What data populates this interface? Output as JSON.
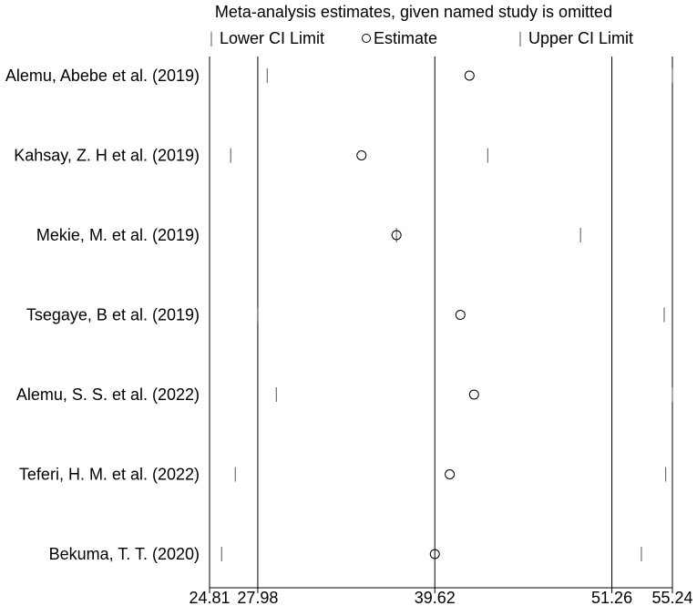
{
  "chart_data": {
    "type": "scatter",
    "title": "Meta-analysis estimates, given named study is omitted",
    "legend": {
      "placement": "top",
      "items": [
        {
          "symbol": "line",
          "label": "Lower CI Limit"
        },
        {
          "symbol": "circle",
          "label": "Estimate"
        },
        {
          "symbol": "line",
          "label": "Upper CI Limit"
        }
      ]
    },
    "xlim": [
      24.81,
      55.24
    ],
    "x_ticks": [
      24.81,
      27.98,
      39.62,
      51.26,
      55.24
    ],
    "x_tick_labels": [
      "24.81",
      "27.98",
      "39.62",
      "51.26",
      "55.24"
    ],
    "reference_lines": [
      27.98,
      39.62,
      51.26
    ],
    "studies": [
      {
        "label": "Alemu, Abebe et al. (2019)",
        "lower": 28.6,
        "estimate": 41.9,
        "upper": 55.24
      },
      {
        "label": "Kahsay, Z. H et al. (2019)",
        "lower": 26.2,
        "estimate": 34.8,
        "upper": 43.1
      },
      {
        "label": "Mekie, M. et al. (2019)",
        "lower": 37.1,
        "estimate": 37.1,
        "upper": 49.2
      },
      {
        "label": "Tsegaye, B et al. (2019)",
        "lower": 27.98,
        "estimate": 41.3,
        "upper": 54.7
      },
      {
        "label": "Alemu, S. S. et al. (2022)",
        "lower": 29.2,
        "estimate": 42.2,
        "upper": 55.24
      },
      {
        "label": "Teferi, H. M. et al. (2022)",
        "lower": 26.5,
        "estimate": 40.6,
        "upper": 54.8
      },
      {
        "label": "Bekuma, T. T. (2020)",
        "lower": 25.6,
        "estimate": 39.62,
        "upper": 53.2
      }
    ]
  }
}
